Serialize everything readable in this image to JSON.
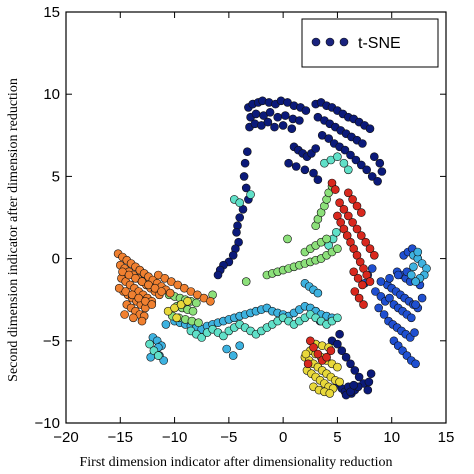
{
  "chart_data": {
    "type": "scatter",
    "title": "",
    "xlabel": "First dimension indicator after dimensionality reduction",
    "ylabel": "Second dimension indicator after dimension reduction",
    "xlim": [
      -20,
      15
    ],
    "ylim": [
      -10,
      15
    ],
    "xticks": [
      -20,
      -15,
      -10,
      -5,
      0,
      5,
      10,
      15
    ],
    "yticks": [
      -10,
      -5,
      0,
      5,
      10,
      15
    ],
    "xtick_labels": [
      "−20",
      "−15",
      "−10",
      "−5",
      "0",
      "5",
      "10",
      "15"
    ],
    "ytick_labels": [
      "−10",
      "−5",
      "0",
      "5",
      "10",
      "15"
    ],
    "grid": false,
    "legend": {
      "entries": [
        "t-SNE"
      ],
      "placement": "top-right",
      "marker_colors": [
        "#1a237e",
        "#1a237e",
        "#1a237e"
      ]
    },
    "colormap": [
      "#0b1a7a",
      "#1f4fd0",
      "#3db2e0",
      "#60e0c8",
      "#8ce07a",
      "#e8d83a",
      "#f08030",
      "#d8281e"
    ],
    "series": [
      {
        "color": "#0b1a7a",
        "x": [
          -3.2,
          -2.8,
          -2.3,
          -1.9,
          -1.3,
          -0.7,
          -0.2,
          0.4,
          1.0,
          1.6,
          2.1,
          -3.0,
          -2.5,
          -1.8,
          -1.2,
          -0.5,
          0.2,
          0.9,
          1.5,
          -3.1,
          -2.6,
          -2.0,
          -1.4,
          -0.8,
          0.0,
          0.8,
          3.0,
          3.5,
          4.0,
          4.5,
          5.0,
          5.5,
          6.0,
          6.5,
          7.0,
          7.5,
          8.0,
          3.2,
          3.8,
          4.3,
          4.8,
          5.3,
          5.8,
          6.3,
          6.8,
          7.3,
          3.6,
          4.2,
          4.7,
          5.2,
          5.7,
          6.2,
          6.7,
          7.2,
          7.7,
          8.2,
          8.7,
          8.4,
          8.9,
          9.1,
          -3.3,
          -3.5,
          -3.6,
          -3.4,
          -3.2,
          -3.7,
          -4.0,
          -4.2,
          -4.3,
          -4.1,
          -4.4,
          -4.6,
          -5.0,
          -5.5,
          -5.8,
          -6.0,
          1.0,
          1.4,
          1.8,
          2.2,
          2.6,
          3.0,
          0.5,
          1.2,
          2.0,
          2.8,
          3.2,
          4.5,
          5.0,
          5.4,
          5.8,
          6.2,
          6.6,
          7.0,
          7.4,
          7.8,
          7.9,
          8.1,
          5.0,
          5.4,
          5.7,
          6.0,
          6.3,
          6.6,
          6.9,
          5.8,
          6.2,
          6.5,
          5.2,
          3.4,
          3.0
        ],
        "y": [
          9.2,
          9.4,
          9.5,
          9.6,
          9.5,
          9.4,
          9.6,
          9.5,
          9.3,
          9.2,
          9.0,
          8.6,
          8.8,
          8.7,
          8.9,
          8.6,
          8.7,
          8.5,
          8.4,
          8.0,
          8.2,
          8.1,
          8.3,
          8.0,
          8.1,
          7.9,
          9.4,
          9.5,
          9.3,
          9.2,
          9.0,
          8.8,
          8.6,
          8.5,
          8.3,
          8.1,
          7.9,
          8.6,
          8.4,
          8.2,
          8.0,
          7.8,
          7.6,
          7.4,
          7.2,
          7.0,
          7.5,
          7.3,
          7.0,
          6.8,
          6.6,
          6.3,
          6.0,
          5.7,
          5.4,
          5.0,
          4.7,
          6.2,
          5.8,
          5.3,
          6.5,
          5.8,
          5.0,
          4.3,
          3.6,
          3.0,
          2.5,
          2.0,
          1.6,
          1.0,
          0.6,
          0.2,
          -0.2,
          -0.4,
          -0.7,
          -1.0,
          6.8,
          6.6,
          6.4,
          6.2,
          6.4,
          6.7,
          5.8,
          5.6,
          5.4,
          5.2,
          4.8,
          -5.0,
          -5.2,
          -5.6,
          -6.0,
          -6.4,
          -6.8,
          -7.2,
          -7.6,
          -8.0,
          -7.5,
          -7.0,
          -7.6,
          -7.9,
          -8.1,
          -7.8,
          -8.2,
          -8.0,
          -7.8,
          -8.3,
          -8.1,
          -7.7,
          -4.6,
          -3.8,
          -3.2
        ]
      },
      {
        "color": "#1f4fd0",
        "x": [
          8.5,
          9.0,
          9.4,
          9.8,
          10.2,
          10.6,
          11.0,
          11.4,
          11.8,
          8.8,
          9.3,
          9.7,
          10.1,
          10.5,
          10.9,
          11.3,
          11.7,
          12.1,
          9.6,
          10.0,
          10.4,
          10.8,
          11.2,
          11.6,
          12.0,
          12.4,
          10.2,
          10.6,
          11.0,
          11.4,
          11.8,
          12.2,
          10.5,
          10.9,
          11.3,
          11.7,
          11.1,
          11.5,
          11.9,
          12.3,
          7.5,
          7.8,
          8.2,
          9.0,
          9.8,
          10.6,
          11.4,
          12.6,
          12.8,
          12.2
        ],
        "y": [
          -2.0,
          -2.3,
          -2.6,
          -2.4,
          -2.8,
          -3.0,
          -3.2,
          -3.4,
          -3.6,
          -3.0,
          -3.4,
          -3.8,
          -4.0,
          -4.2,
          -4.4,
          -4.6,
          -4.8,
          -4.5,
          -1.6,
          -1.8,
          -2.0,
          -2.2,
          -2.4,
          -2.6,
          -2.8,
          -3.0,
          -5.0,
          -5.3,
          -5.6,
          -5.9,
          -6.2,
          -6.4,
          -0.8,
          -1.0,
          -1.2,
          -1.4,
          0.2,
          0.4,
          0.6,
          0.2,
          -1.5,
          -1.0,
          -0.6,
          -1.4,
          -1.2,
          -1.0,
          -0.8,
          -1.6,
          -2.4,
          -2.8
        ]
      },
      {
        "color": "#3db2e0",
        "x": [
          -12.0,
          -11.6,
          -11.2,
          -11.8,
          -11.4,
          -11.0,
          -12.2,
          -11.5,
          -10.8,
          -10.0,
          -9.5,
          -9.0,
          -8.5,
          -8.0,
          -7.5,
          -7.0,
          -6.5,
          -6.0,
          -5.5,
          -5.0,
          -4.5,
          -4.0,
          -3.5,
          -3.0,
          -2.5,
          -2.0,
          -1.5,
          -1.0,
          -0.5,
          0.0,
          0.5,
          1.0,
          1.5,
          2.0,
          2.5,
          3.0,
          3.5,
          4.0,
          4.5,
          12.0,
          12.4,
          12.8,
          13.2,
          13.0,
          12.6,
          12.2,
          11.8,
          12.0,
          12.4,
          2.0,
          2.4,
          2.8,
          3.2,
          -5.2,
          -4.6,
          -4.0
        ],
        "y": [
          -4.8,
          -5.0,
          -5.3,
          -5.6,
          -5.9,
          -6.2,
          -6.0,
          -5.4,
          -4.0,
          -3.8,
          -3.9,
          -4.0,
          -4.1,
          -4.2,
          -4.3,
          -4.1,
          -4.0,
          -3.9,
          -3.8,
          -3.7,
          -3.6,
          -3.5,
          -3.4,
          -3.3,
          -3.2,
          -3.1,
          -3.0,
          -3.2,
          -3.3,
          -3.4,
          -3.5,
          -3.3,
          -3.1,
          -2.9,
          -3.0,
          -3.2,
          -3.4,
          -3.5,
          -3.6,
          0.2,
          0.0,
          -0.3,
          -0.6,
          -1.0,
          -1.2,
          -1.4,
          -1.0,
          -0.5,
          0.4,
          -1.5,
          -1.7,
          -1.9,
          -2.1,
          -5.5,
          -5.9,
          -5.3
        ]
      },
      {
        "color": "#60e0c8",
        "x": [
          -12.3,
          -11.9,
          -11.5,
          -8.5,
          -8.0,
          -7.5,
          -7.0,
          -6.5,
          -6.0,
          -5.5,
          -5.0,
          -4.5,
          -4.0,
          -3.5,
          -3.0,
          -2.5,
          -2.0,
          -1.5,
          -1.0,
          -0.5,
          0.0,
          0.5,
          1.0,
          1.5,
          2.0,
          2.5,
          3.0,
          3.5,
          4.0,
          4.5,
          5.0,
          3.8,
          4.4,
          5.0,
          5.6,
          6.0,
          4.2,
          4.6,
          4.9,
          -4.5,
          -4.0,
          -3.0
        ],
        "y": [
          -5.2,
          -5.6,
          -5.9,
          -4.4,
          -4.6,
          -4.8,
          -4.5,
          -4.3,
          -4.5,
          -4.7,
          -4.4,
          -4.2,
          -4.0,
          -4.2,
          -4.4,
          -4.6,
          -4.4,
          -4.2,
          -4.0,
          -3.8,
          -3.6,
          -3.8,
          -4.0,
          -3.8,
          -3.6,
          -3.4,
          -3.6,
          -3.8,
          -4.0,
          -3.8,
          -3.6,
          5.8,
          6.0,
          6.2,
          5.8,
          5.4,
          0.8,
          1.2,
          1.6,
          3.6,
          3.4,
          3.9
        ]
      },
      {
        "color": "#8ce07a",
        "x": [
          -1.5,
          -1.0,
          -0.5,
          0.0,
          0.5,
          1.0,
          1.5,
          2.0,
          2.5,
          3.0,
          3.5,
          4.0,
          4.5,
          5.0,
          2.0,
          2.5,
          3.0,
          3.5,
          4.0,
          3.0,
          3.2,
          3.5,
          3.8,
          4.0,
          4.2,
          4.5,
          -10.5,
          -10.0,
          -9.5,
          -9.0,
          -8.5,
          -8.0,
          -9.8,
          -9.3,
          -8.8,
          -8.3,
          -10.2,
          -9.6,
          -9.0,
          -8.4,
          -7.8,
          -3.4,
          -6.5,
          0.4
        ],
        "y": [
          -1.0,
          -0.9,
          -0.8,
          -0.7,
          -0.6,
          -0.5,
          -0.4,
          -0.3,
          -0.2,
          -0.1,
          0.0,
          0.2,
          0.4,
          0.6,
          0.4,
          0.6,
          0.8,
          1.0,
          1.2,
          2.0,
          2.4,
          2.8,
          3.2,
          3.6,
          4.0,
          4.4,
          -2.2,
          -2.3,
          -2.4,
          -2.5,
          -2.6,
          -2.7,
          -2.9,
          -3.0,
          -3.1,
          -3.2,
          -3.5,
          -3.6,
          -3.7,
          -3.8,
          -3.9,
          -1.4,
          -2.2,
          1.2
        ]
      },
      {
        "color": "#e8d83a",
        "x": [
          2.0,
          2.4,
          2.8,
          3.2,
          3.6,
          4.0,
          4.4,
          4.8,
          5.2,
          2.2,
          2.6,
          3.0,
          3.4,
          3.8,
          4.2,
          4.6,
          2.5,
          3.0,
          3.5,
          4.0,
          4.5,
          5.0,
          2.8,
          3.3,
          3.8,
          4.3,
          3.0,
          3.6,
          4.2,
          2.1,
          -10.6,
          -10.0,
          -9.4,
          -8.8,
          -9.8
        ],
        "y": [
          -6.0,
          -6.2,
          -6.4,
          -6.6,
          -6.8,
          -7.0,
          -7.2,
          -7.4,
          -7.5,
          -6.8,
          -7.0,
          -7.2,
          -7.4,
          -7.6,
          -7.8,
          -7.9,
          -5.6,
          -5.8,
          -6.0,
          -6.2,
          -6.4,
          -6.6,
          -7.8,
          -8.0,
          -8.1,
          -8.2,
          -5.2,
          -5.3,
          -5.4,
          -5.8,
          -3.2,
          -3.0,
          -2.8,
          -2.6,
          -3.6
        ]
      },
      {
        "color": "#f08030",
        "x": [
          -15.2,
          -14.8,
          -14.4,
          -14.0,
          -13.6,
          -13.2,
          -12.8,
          -12.4,
          -12.0,
          -11.6,
          -11.2,
          -10.8,
          -10.4,
          -15.0,
          -14.6,
          -14.2,
          -13.8,
          -13.4,
          -13.0,
          -12.6,
          -12.2,
          -11.8,
          -11.4,
          -14.9,
          -14.5,
          -14.1,
          -13.7,
          -13.3,
          -12.9,
          -12.5,
          -12.1,
          -14.7,
          -14.3,
          -13.9,
          -13.5,
          -13.1,
          -12.7,
          -14.4,
          -14.0,
          -13.6,
          -13.2,
          -12.8,
          -14.8,
          -14.2,
          -13.6,
          -13.0,
          -12.4,
          -11.8,
          -11.2,
          -15.1,
          -14.5,
          -13.9,
          -13.3,
          -12.7,
          -12.1,
          -11.5,
          -10.9,
          -10.3,
          -9.7,
          -9.1,
          -8.5,
          -7.9,
          -7.3,
          -6.7,
          -14.6,
          -13.8,
          -13.0
        ],
        "y": [
          0.3,
          0.1,
          -0.1,
          -0.3,
          -0.5,
          -0.7,
          -0.9,
          -1.1,
          -1.3,
          -1.5,
          -1.7,
          -1.9,
          -2.1,
          -0.4,
          -0.6,
          -0.8,
          -1.0,
          -1.2,
          -1.4,
          -1.6,
          -1.8,
          -2.0,
          -2.2,
          -1.2,
          -1.4,
          -1.6,
          -1.8,
          -2.0,
          -2.2,
          -2.4,
          -2.6,
          -2.0,
          -2.2,
          -2.4,
          -2.6,
          -2.8,
          -3.0,
          -2.8,
          -3.0,
          -3.2,
          -3.4,
          -3.5,
          -0.8,
          -1.0,
          -1.2,
          -1.4,
          -1.6,
          -1.8,
          -2.0,
          -1.8,
          -2.0,
          -2.2,
          -2.4,
          -2.6,
          -2.8,
          -1.0,
          -1.2,
          -1.4,
          -1.6,
          -1.8,
          -2.0,
          -2.2,
          -2.4,
          -2.6,
          -3.4,
          -3.6,
          -3.8
        ]
      },
      {
        "color": "#d8281e",
        "x": [
          5.0,
          5.3,
          5.6,
          5.9,
          6.2,
          6.5,
          6.8,
          7.1,
          7.4,
          7.7,
          8.0,
          5.2,
          5.6,
          6.0,
          6.4,
          6.8,
          7.2,
          7.6,
          8.0,
          8.4,
          6.0,
          6.4,
          6.8,
          7.2,
          6.5,
          6.9,
          7.3,
          4.5,
          4.8,
          2.5,
          2.8,
          3.2,
          3.6,
          4.0,
          4.4,
          6.6,
          7.0,
          7.4,
          2.3
        ],
        "y": [
          2.6,
          2.2,
          1.8,
          1.4,
          1.0,
          0.6,
          0.2,
          -0.2,
          -0.6,
          -1.0,
          -1.4,
          3.4,
          3.0,
          2.6,
          2.2,
          1.8,
          1.4,
          1.0,
          0.6,
          0.2,
          4.0,
          3.6,
          3.2,
          2.8,
          -0.8,
          -1.2,
          -1.6,
          4.6,
          4.2,
          -5.0,
          -5.4,
          -5.8,
          -6.2,
          -6.0,
          -5.6,
          -2.0,
          -2.4,
          -2.8,
          -6.4
        ]
      }
    ]
  }
}
